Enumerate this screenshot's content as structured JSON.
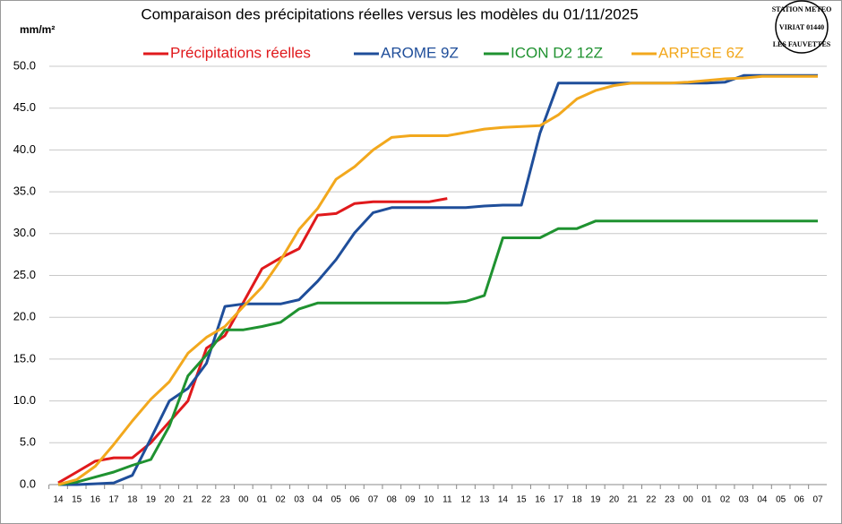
{
  "chart_data": {
    "type": "line",
    "title": "Comparaison des précipitations  réelles versus les modèles du 01/11/2025",
    "y_label": "mm/m²",
    "annotations": [
      "STATION METEO",
      "VIRIAT 01440",
      "LES FAUVETTES"
    ],
    "categories": [
      "14",
      "15",
      "16",
      "17",
      "18",
      "19",
      "20",
      "21",
      "22",
      "23",
      "00",
      "01",
      "02",
      "03",
      "04",
      "05",
      "06",
      "07",
      "08",
      "09",
      "10",
      "11",
      "12",
      "13",
      "14",
      "15",
      "16",
      "17",
      "18",
      "19",
      "20",
      "21",
      "22",
      "23",
      "00",
      "01",
      "02",
      "03",
      "04",
      "05",
      "06",
      "07"
    ],
    "series": [
      {
        "name": "Précipitations réelles",
        "color": "#e0191c",
        "values": [
          0.2,
          1.5,
          2.8,
          3.2,
          3.2,
          5.0,
          7.5,
          10.0,
          16.3,
          17.8,
          21.8,
          25.8,
          27.1,
          28.2,
          32.2,
          32.4,
          33.6,
          33.8,
          33.8,
          33.8,
          33.8,
          34.2,
          null,
          null,
          null,
          null,
          null,
          null,
          null,
          null,
          null,
          null,
          null,
          null,
          null,
          null,
          null,
          null,
          null,
          null,
          null,
          null
        ]
      },
      {
        "name": "AROME 9Z",
        "color": "#1f4e9a",
        "values": [
          0,
          0,
          0.1,
          0.2,
          1.1,
          5.5,
          10.0,
          11.5,
          14.5,
          21.3,
          21.6,
          21.6,
          21.6,
          22.1,
          24.3,
          26.9,
          30.1,
          32.5,
          33.1,
          33.1,
          33.1,
          33.1,
          33.1,
          33.3,
          33.4,
          33.4,
          42.0,
          48.0,
          48.0,
          48.0,
          48.0,
          48.0,
          48.0,
          48.0,
          48.0,
          48.0,
          48.1,
          48.9,
          48.9,
          48.9,
          48.9,
          48.9
        ]
      },
      {
        "name": "ICON D2 12Z",
        "color": "#1f9230",
        "values": [
          0,
          0.3,
          0.9,
          1.5,
          2.3,
          3.0,
          7.0,
          13.0,
          15.5,
          18.5,
          18.5,
          18.9,
          19.4,
          21.0,
          21.7,
          21.7,
          21.7,
          21.7,
          21.7,
          21.7,
          21.7,
          21.7,
          21.9,
          22.6,
          29.5,
          29.5,
          29.5,
          30.6,
          30.6,
          31.5,
          31.5,
          31.5,
          31.5,
          31.5,
          31.5,
          31.5,
          31.5,
          31.5,
          31.5,
          31.5,
          31.5,
          31.5
        ]
      },
      {
        "name": "ARPEGE 6Z",
        "color": "#f2a81d",
        "values": [
          0,
          0.6,
          2.2,
          4.8,
          7.6,
          10.2,
          12.3,
          15.7,
          17.6,
          18.9,
          21.3,
          23.6,
          26.8,
          30.5,
          33.0,
          36.5,
          38.0,
          40.0,
          41.5,
          41.7,
          41.7,
          41.7,
          42.1,
          42.5,
          42.7,
          42.8,
          42.9,
          44.2,
          46.1,
          47.1,
          47.7,
          48.0,
          48.0,
          48.0,
          48.1,
          48.3,
          48.5,
          48.6,
          48.8,
          48.8,
          48.8,
          48.8
        ]
      }
    ],
    "ylim": [
      0,
      50
    ],
    "yticks": [
      {
        "value": 0,
        "label": "0.0"
      },
      {
        "value": 5,
        "label": "5.0"
      },
      {
        "value": 10,
        "label": "10.0"
      },
      {
        "value": 15,
        "label": "15.0"
      },
      {
        "value": 20,
        "label": "20.0"
      },
      {
        "value": 25,
        "label": "25.0"
      },
      {
        "value": 30,
        "label": "30.0"
      },
      {
        "value": 35,
        "label": "35.0"
      },
      {
        "value": 40,
        "label": "40.0"
      },
      {
        "value": 45,
        "label": "45.0"
      },
      {
        "value": 50,
        "label": "50.0"
      }
    ],
    "grid": true
  }
}
